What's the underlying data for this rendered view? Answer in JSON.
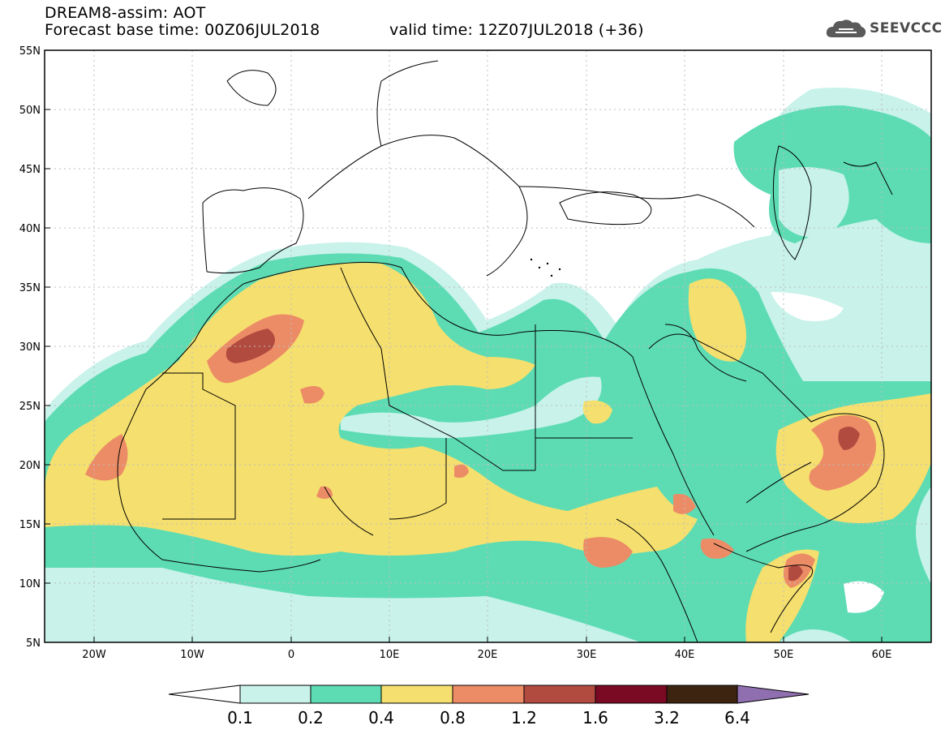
{
  "header": {
    "line1": "DREAM8-assim: AOT",
    "line2": "Forecast base time: 00Z06JUL2018",
    "valid": "valid time: 12Z07JUL2018 (+36)"
  },
  "logo": {
    "text": "SEEVCCC",
    "icon": "cloud-icon"
  },
  "axes": {
    "lat_labels": [
      "55N",
      "50N",
      "45N",
      "40N",
      "35N",
      "30N",
      "25N",
      "20N",
      "15N",
      "10N",
      "5N"
    ],
    "lon_labels": [
      "20W",
      "10W",
      "0",
      "10E",
      "20E",
      "30E",
      "40E",
      "50E",
      "60E"
    ]
  },
  "legend": {
    "labels": [
      "0.1",
      "0.2",
      "0.4",
      "0.8",
      "1.2",
      "1.6",
      "3.2",
      "6.4"
    ],
    "colors": [
      "#ffffff",
      "#c8f2ea",
      "#5ddcb4",
      "#f5df6e",
      "#ec8c66",
      "#b24b3f",
      "#7a0a24",
      "#3c2410",
      "#8f6fb0"
    ]
  }
}
